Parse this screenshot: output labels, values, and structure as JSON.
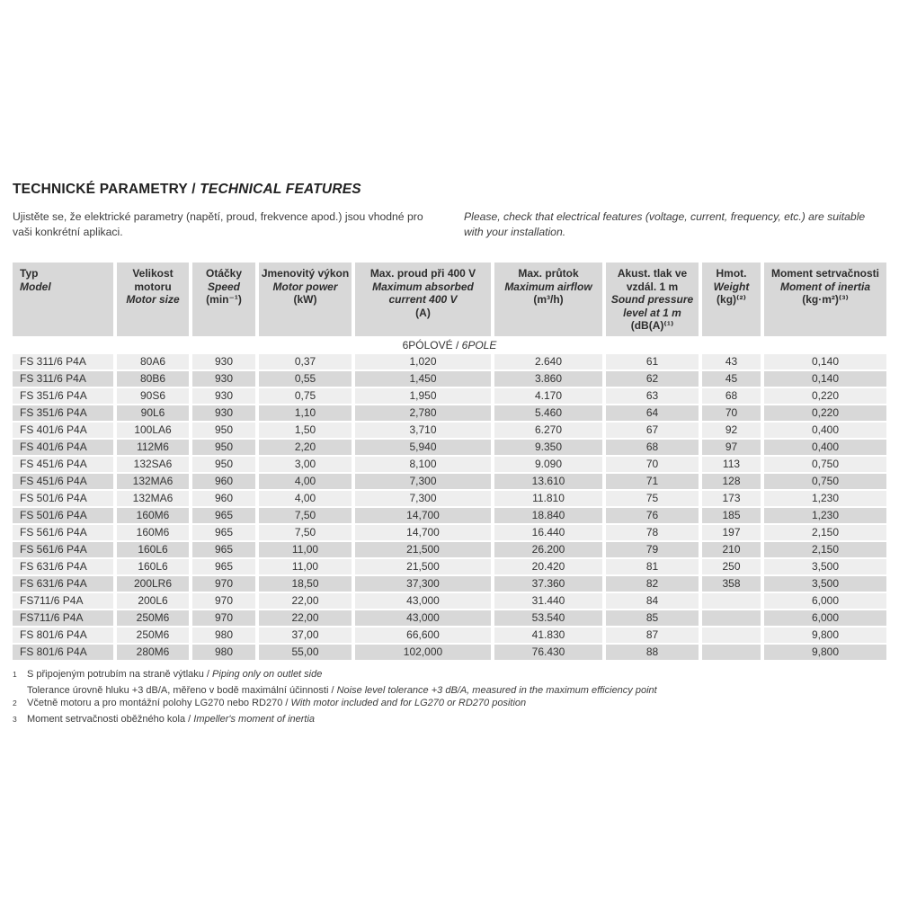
{
  "sep": " / ",
  "title": {
    "cs": "TECHNICKÉ PARAMETRY",
    "en": "TECHNICAL FEATURES"
  },
  "intro": {
    "cs": "Ujistěte se, že elektrické parametry (napětí, proud, frekvence apod.) jsou vhodné pro vaši konkrétní aplikaci.",
    "en": "Please, check that electrical features (voltage, current, frequency, etc.) are suitable with your installation."
  },
  "table": {
    "columns": [
      {
        "cs": "Typ",
        "en": "Model",
        "unit": ""
      },
      {
        "cs": "Velikost motoru",
        "en": "Motor size",
        "unit": ""
      },
      {
        "cs": "Otáčky",
        "en": "Speed",
        "unit": "(min⁻¹)"
      },
      {
        "cs": "Jmenovitý výkon",
        "en": "Motor power",
        "unit": "(kW)"
      },
      {
        "cs": "Max. proud při 400 V",
        "en": "Maximum absorbed current 400 V",
        "unit": "(A)"
      },
      {
        "cs": "Max. průtok",
        "en": "Maximum airflow",
        "unit": "(m³/h)"
      },
      {
        "cs": "Akust. tlak ve vzdál. 1 m",
        "en": "Sound pressure level at 1 m",
        "unit": "(dB(A)⁽¹⁾"
      },
      {
        "cs": "Hmot.",
        "en": "Weight",
        "unit": "(kg)⁽²⁾"
      },
      {
        "cs": "Moment setrvačnosti",
        "en": "Moment of inertia",
        "unit": "(kg·m²)⁽³⁾"
      }
    ],
    "section": {
      "cs": "6PÓLOVÉ",
      "en": "6POLE"
    },
    "rows": [
      [
        "FS 311/6 P4A",
        "80A6",
        "930",
        "0,37",
        "1,020",
        "2.640",
        "61",
        "43",
        "0,140"
      ],
      [
        "FS 311/6 P4A",
        "80B6",
        "930",
        "0,55",
        "1,450",
        "3.860",
        "62",
        "45",
        "0,140"
      ],
      [
        "FS 351/6 P4A",
        "90S6",
        "930",
        "0,75",
        "1,950",
        "4.170",
        "63",
        "68",
        "0,220"
      ],
      [
        "FS 351/6 P4A",
        "90L6",
        "930",
        "1,10",
        "2,780",
        "5.460",
        "64",
        "70",
        "0,220"
      ],
      [
        "FS 401/6 P4A",
        "100LA6",
        "950",
        "1,50",
        "3,710",
        "6.270",
        "67",
        "92",
        "0,400"
      ],
      [
        "FS 401/6 P4A",
        "112M6",
        "950",
        "2,20",
        "5,940",
        "9.350",
        "68",
        "97",
        "0,400"
      ],
      [
        "FS 451/6 P4A",
        "132SA6",
        "950",
        "3,00",
        "8,100",
        "9.090",
        "70",
        "113",
        "0,750"
      ],
      [
        "FS 451/6 P4A",
        "132MA6",
        "960",
        "4,00",
        "7,300",
        "13.610",
        "71",
        "128",
        "0,750"
      ],
      [
        "FS 501/6 P4A",
        "132MA6",
        "960",
        "4,00",
        "7,300",
        "11.810",
        "75",
        "173",
        "1,230"
      ],
      [
        "FS 501/6 P4A",
        "160M6",
        "965",
        "7,50",
        "14,700",
        "18.840",
        "76",
        "185",
        "1,230"
      ],
      [
        "FS 561/6 P4A",
        "160M6",
        "965",
        "7,50",
        "14,700",
        "16.440",
        "78",
        "197",
        "2,150"
      ],
      [
        "FS 561/6 P4A",
        "160L6",
        "965",
        "11,00",
        "21,500",
        "26.200",
        "79",
        "210",
        "2,150"
      ],
      [
        "FS 631/6 P4A",
        "160L6",
        "965",
        "11,00",
        "21,500",
        "20.420",
        "81",
        "250",
        "3,500"
      ],
      [
        "FS 631/6 P4A",
        "200LR6",
        "970",
        "18,50",
        "37,300",
        "37.360",
        "82",
        "358",
        "3,500"
      ],
      [
        "FS711/6 P4A",
        "200L6",
        "970",
        "22,00",
        "43,000",
        "31.440",
        "84",
        "",
        "6,000"
      ],
      [
        "FS711/6 P4A",
        "250M6",
        "970",
        "22,00",
        "43,000",
        "53.540",
        "85",
        "",
        "6,000"
      ],
      [
        "FS 801/6 P4A",
        "250M6",
        "980",
        "37,00",
        "66,600",
        "41.830",
        "87",
        "",
        "9,800"
      ],
      [
        "FS 801/6 P4A",
        "280M6",
        "980",
        "55,00",
        "102,000",
        "76.430",
        "88",
        "",
        "9,800"
      ]
    ]
  },
  "footnotes": [
    {
      "marker": "1",
      "cs": "S připojeným potrubím na straně výtlaku",
      "en": "Piping only on outlet side"
    },
    {
      "marker": "",
      "cs": "Tolerance úrovně hluku +3 dB/A, měřeno v bodě maximální účinnosti",
      "en": "Noise level tolerance +3 dB/A, measured in the maximum efficiency point"
    },
    {
      "marker": "2",
      "cs": "Včetně motoru a pro montážní polohy LG270 nebo RD270",
      "en": "With motor included and for LG270 or RD270 position"
    },
    {
      "marker": "3",
      "cs": "Moment setrvačnosti oběžného kola",
      "en": "Impeller's moment of inertia"
    }
  ]
}
